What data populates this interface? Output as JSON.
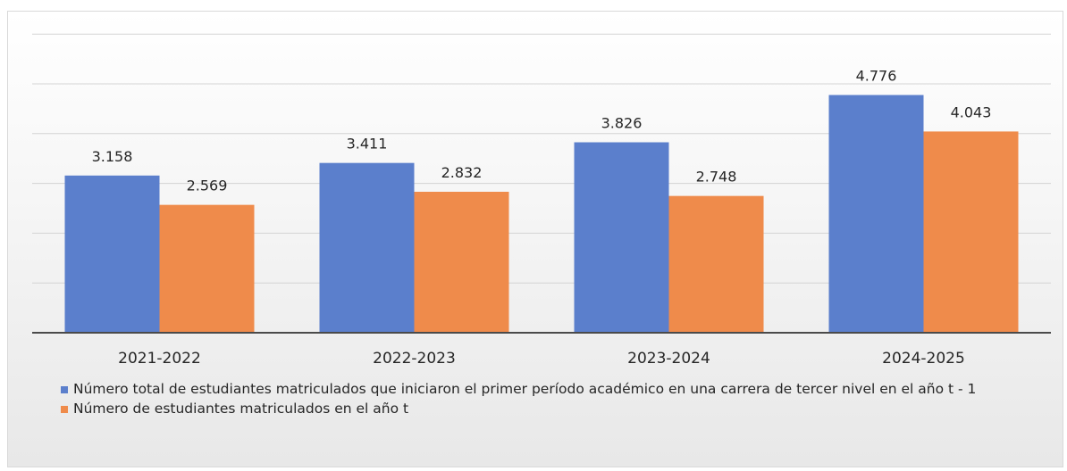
{
  "chart_data": {
    "type": "bar",
    "categories": [
      "2021-2022",
      "2022-2023",
      "2023-2024",
      "2024-2025"
    ],
    "series": [
      {
        "name": "Número total de estudiantes matriculados que iniciaron el primer período académico en una carrera de tercer nivel en el año t - 1",
        "values": [
          3.158,
          3.411,
          3.826,
          4.776
        ],
        "labels": [
          "3.158",
          "3.411",
          "3.826",
          "4.776"
        ],
        "color": "#5b7fcc"
      },
      {
        "name": "Número de estudiantes matriculados en el año t",
        "values": [
          2.569,
          2.832,
          2.748,
          4.043
        ],
        "labels": [
          "2.569",
          "2.832",
          "2.748",
          "4.043"
        ],
        "color": "#ef8b4b"
      }
    ],
    "ylim": [
      0,
      6
    ],
    "grid": true,
    "legend_position": "bottom"
  }
}
